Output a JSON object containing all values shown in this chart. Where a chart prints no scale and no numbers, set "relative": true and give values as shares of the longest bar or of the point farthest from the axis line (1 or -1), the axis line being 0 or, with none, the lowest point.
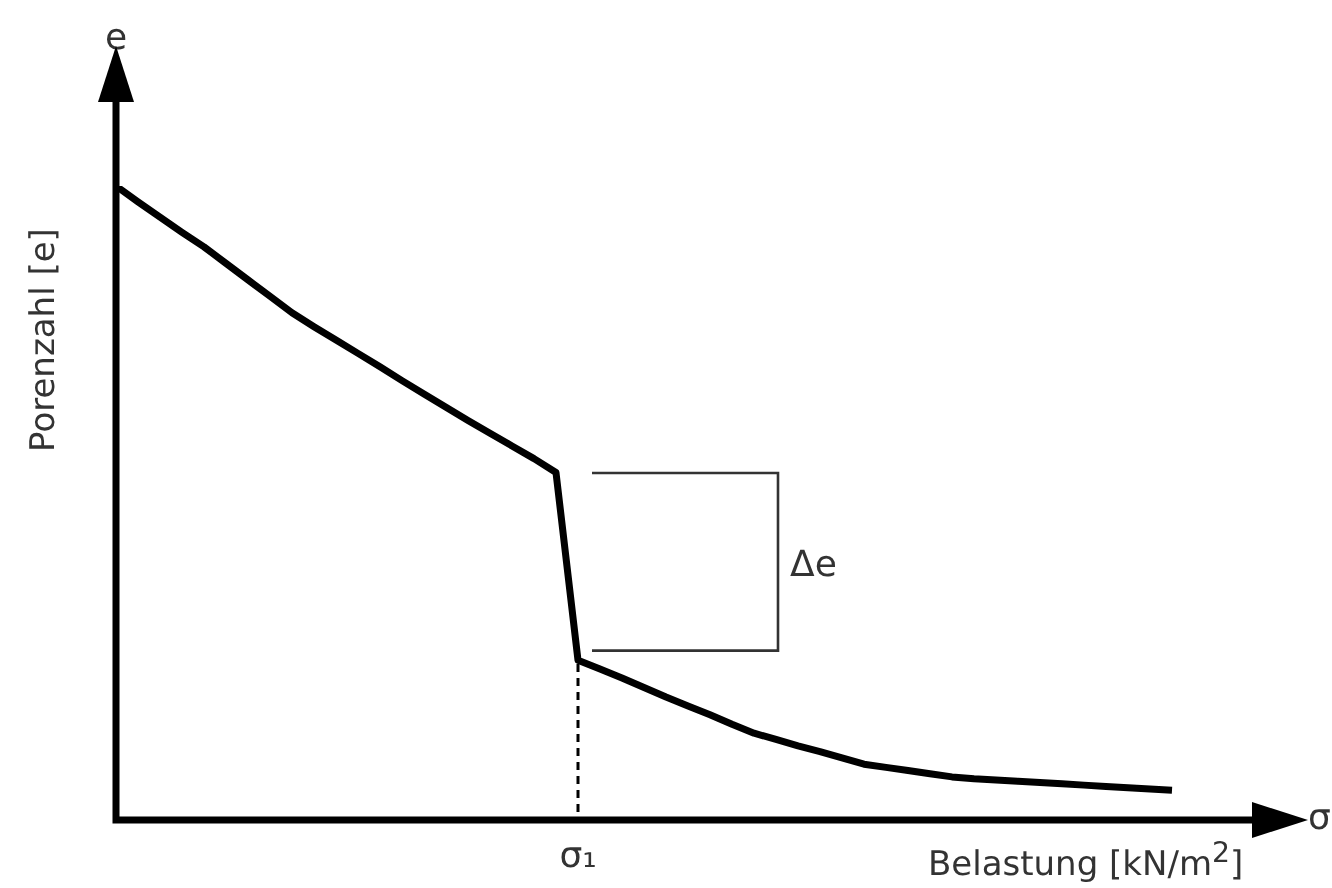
{
  "chart_data": {
    "type": "line",
    "relative": true,
    "ylabel": "Porenzahl [e]",
    "xlabel": "Belastung [kN/m$^{2}$]",
    "categories": [
      null,
      null,
      null,
      null,
      null,
      null,
      null,
      null,
      null,
      null,
      null,
      null,
      null,
      null,
      null,
      null,
      null,
      null,
      null,
      null,
      null,
      null,
      null,
      null,
      null,
      null,
      null,
      null,
      null,
      null,
      null,
      null,
      null,
      null,
      null,
      null,
      null,
      null,
      null,
      null,
      null,
      null,
      null,
      null,
      null,
      null,
      null,
      null,
      null
    ],
    "series": [
      {
        "color": "#000000",
        "values": [
          1.0,
          0.975,
          0.951,
          0.927,
          0.904,
          0.878,
          0.852,
          0.826,
          0.8,
          0.778,
          0.757,
          0.736,
          0.715,
          0.693,
          0.672,
          0.651,
          0.63,
          0.61,
          0.59,
          0.57,
          0.548,
          0.252,
          0.238,
          0.224,
          0.209,
          0.194,
          0.18,
          0.166,
          0.151,
          0.137,
          0.127,
          0.117,
          0.108,
          0.098,
          0.088,
          0.083,
          0.078,
          0.073,
          0.068,
          0.065,
          0.063,
          0.061,
          0.059,
          0.057,
          0.055,
          0.053,
          0.051,
          0.049,
          0.047
        ]
      }
    ],
    "annotations": [
      "e",
      "σ",
      "Δe",
      "σ₁"
    ],
    "marker": "none",
    "line_style": "solid",
    "grid": false,
    "legend": false
  }
}
